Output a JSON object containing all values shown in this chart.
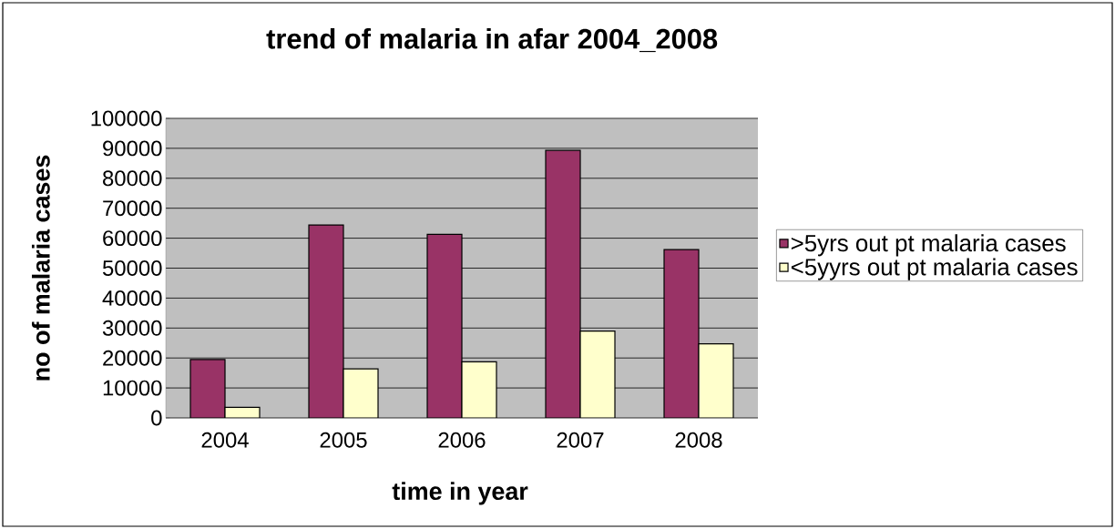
{
  "chart_data": {
    "type": "bar",
    "title": "trend of malaria in afar 2004_2008",
    "xlabel": "time in year",
    "ylabel": "no of malaria cases",
    "categories": [
      "2004",
      "2005",
      "2006",
      "2007",
      "2008"
    ],
    "series": [
      {
        "name": ">5yrs out pt malaria cases",
        "color": "#993366",
        "values": [
          19500,
          64400,
          61300,
          89300,
          56200
        ]
      },
      {
        "name": "<5yyrs out pt malaria cases",
        "color": "#ffffcc",
        "values": [
          3500,
          16400,
          18700,
          29000,
          24700
        ]
      }
    ],
    "ylim": [
      0,
      100000
    ],
    "yticks": [
      0,
      10000,
      20000,
      30000,
      40000,
      50000,
      60000,
      70000,
      80000,
      90000,
      100000
    ],
    "grid": "y",
    "legend": "right"
  }
}
